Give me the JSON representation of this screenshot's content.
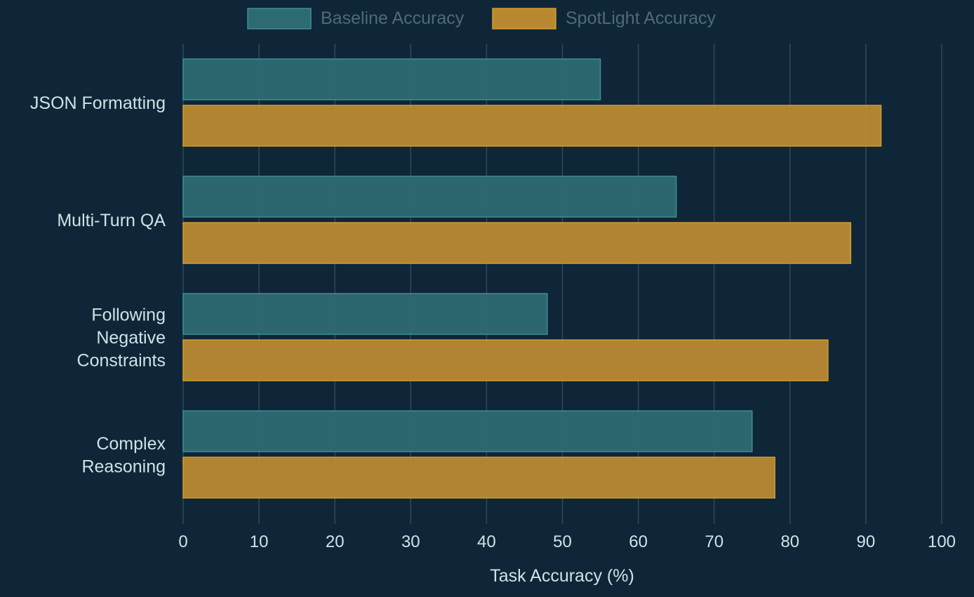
{
  "chart_data": {
    "type": "bar",
    "orientation": "horizontal",
    "title": "",
    "categories": [
      "JSON Formatting",
      "Multi-Turn QA",
      "Following Negative Constraints",
      "Complex Reasoning"
    ],
    "category_lines": [
      [
        "JSON Formatting"
      ],
      [
        "Multi-Turn QA"
      ],
      [
        "Following",
        "Negative",
        "Constraints"
      ],
      [
        "Complex",
        "Reasoning"
      ]
    ],
    "series": [
      {
        "name": "Baseline Accuracy",
        "values": [
          55,
          65,
          48,
          75
        ],
        "color": "#2e6a72",
        "edge": "#3e8d96"
      },
      {
        "name": "SpotLight Accuracy",
        "values": [
          92,
          88,
          85,
          78
        ],
        "color": "#b98932",
        "edge": "#d49c2e"
      }
    ],
    "xlabel": "Task Accuracy (%)",
    "ylabel": "",
    "xlim": [
      0,
      100
    ],
    "xticks": [
      0,
      10,
      20,
      30,
      40,
      50,
      60,
      70,
      80,
      90,
      100
    ],
    "grid": true,
    "legend_position": "top-center",
    "background": "#0e2638",
    "text_color": "#cfe3e6",
    "grid_color": "#2f4a55"
  }
}
